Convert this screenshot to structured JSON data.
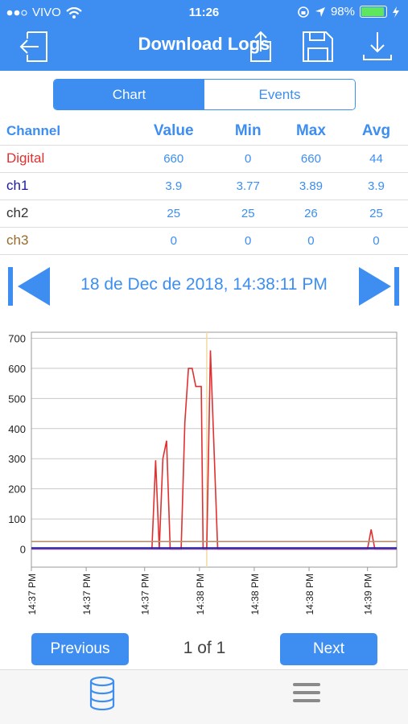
{
  "status": {
    "carrier": "VIVO",
    "time": "11:26",
    "battery": "98%",
    "battery_level": 0.98
  },
  "header": {
    "title": "Download Logs",
    "icons": [
      "exit-icon",
      "share-icon",
      "save-icon",
      "download-icon"
    ]
  },
  "segments": {
    "chart": "Chart",
    "events": "Events"
  },
  "table": {
    "headers": [
      "Channel",
      "Value",
      "Min",
      "Max",
      "Avg"
    ],
    "rows": [
      {
        "name": "Digital",
        "color": "#e03030",
        "value": "660",
        "min": "0",
        "max": "660",
        "avg": "44"
      },
      {
        "name": "ch1",
        "color": "#1a1aa6",
        "value": "3.9",
        "min": "3.77",
        "max": "3.89",
        "avg": "3.9"
      },
      {
        "name": "ch2",
        "color": "#333333",
        "value": "25",
        "min": "25",
        "max": "26",
        "avg": "25"
      },
      {
        "name": "ch3",
        "color": "#9a6a2a",
        "value": "0",
        "min": "0",
        "max": "0",
        "avg": "0"
      }
    ]
  },
  "nav": {
    "date": "18 de Dec de 2018, 14:38:11 PM"
  },
  "chart_data": {
    "type": "line",
    "ylim": [
      -60,
      720
    ],
    "yticks": [
      0,
      100,
      200,
      300,
      400,
      500,
      600,
      700
    ],
    "xlim": [
      0,
      100
    ],
    "xticks": [
      {
        "x": 0,
        "label": "14:37 PM"
      },
      {
        "x": 15,
        "label": "14:37 PM"
      },
      {
        "x": 31,
        "label": "14:37 PM"
      },
      {
        "x": 46,
        "label": "14:38 PM"
      },
      {
        "x": 61,
        "label": "14:38 PM"
      },
      {
        "x": 76,
        "label": "14:38 PM"
      },
      {
        "x": 92,
        "label": "14:39 PM"
      }
    ],
    "cursor_x": 48,
    "series": [
      {
        "color": "#e03030",
        "points": [
          [
            33,
            0
          ],
          [
            34,
            295
          ],
          [
            35,
            0
          ],
          [
            36,
            300
          ],
          [
            37,
            360
          ],
          [
            38,
            0
          ],
          [
            41,
            0
          ],
          [
            42,
            420
          ],
          [
            43,
            600
          ],
          [
            44,
            600
          ],
          [
            45,
            540
          ],
          [
            46.5,
            540
          ],
          [
            47,
            0
          ],
          [
            48,
            0
          ],
          [
            49,
            660
          ],
          [
            51,
            0
          ],
          [
            92,
            0
          ],
          [
            93,
            65
          ],
          [
            94,
            0
          ],
          [
            100,
            0
          ]
        ]
      },
      {
        "color": "#b89070",
        "points": [
          [
            0,
            25
          ],
          [
            100,
            25
          ]
        ]
      },
      {
        "color": "#1a1aa6",
        "points": [
          [
            0,
            3.9
          ],
          [
            100,
            3.9
          ]
        ]
      },
      {
        "color": "#6a3aa0",
        "points": [
          [
            0,
            0
          ],
          [
            100,
            0
          ]
        ]
      }
    ]
  },
  "pager": {
    "previous": "Previous",
    "page": "1 of 1",
    "next": "Next"
  },
  "tabbar": {
    "icons": [
      "database-icon",
      "menu-icon"
    ]
  }
}
